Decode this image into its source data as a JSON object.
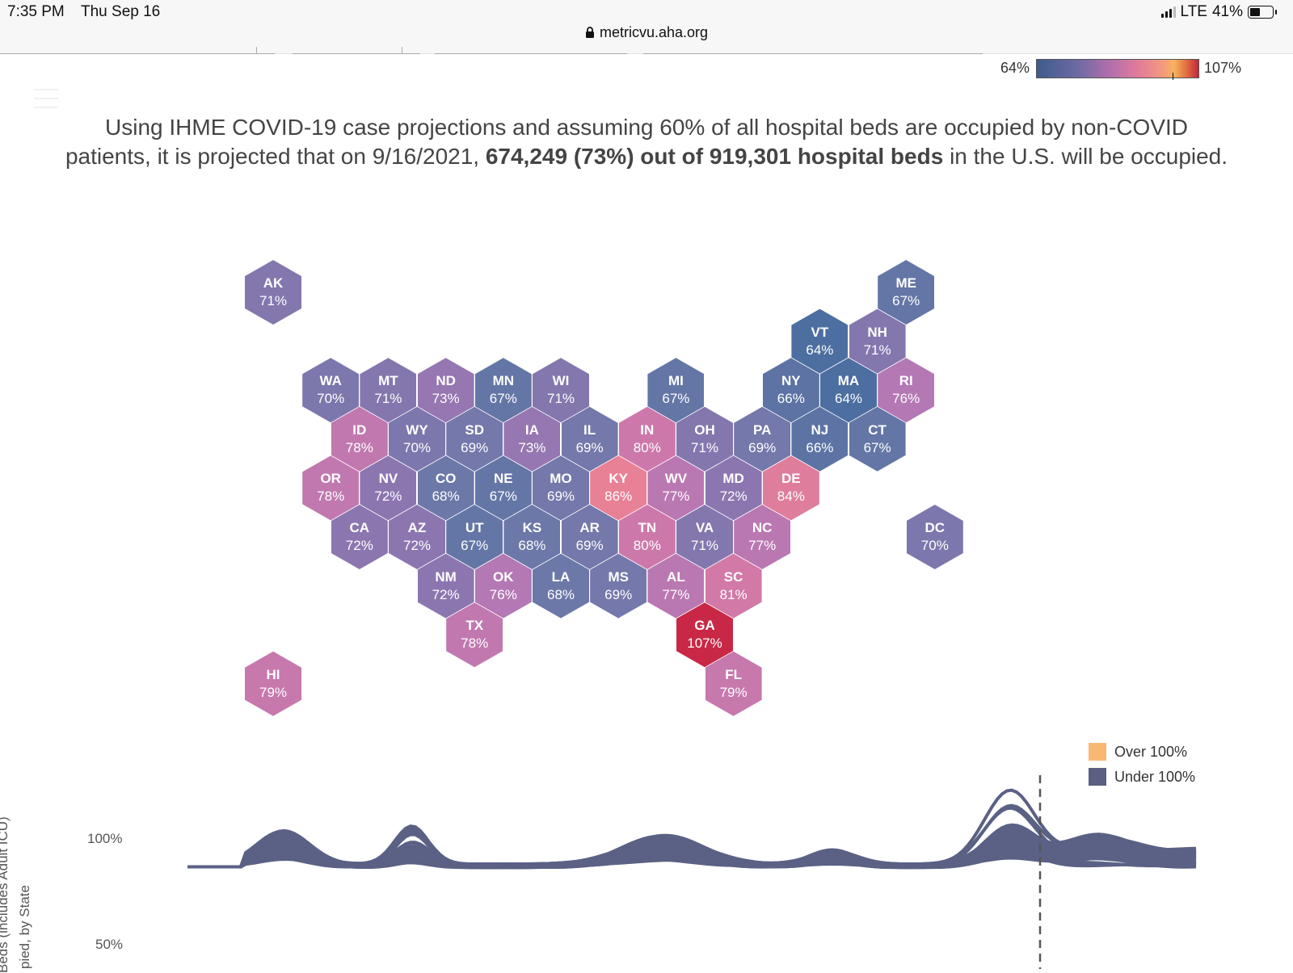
{
  "status_bar": {
    "time": "7:35 PM",
    "date": "Thu Sep 16",
    "network": "LTE",
    "battery": "41%"
  },
  "url": "metricvu.aha.org",
  "color_scale": {
    "min_label": "64%",
    "max_label": "107%"
  },
  "headline": {
    "line1": "Using IHME COVID-19 case projections and assuming 60% of all hospital beds are occupied by non-COVID",
    "line2_pre": "patients, it is projected that on 9/16/2021, ",
    "line2_bold": "674,249 (73%) out of 919,301 hospital beds",
    "line2_post": " in the U.S. will be occupied."
  },
  "states": [
    {
      "abbr": "AK",
      "pct": "71%",
      "value": 71,
      "row": 0,
      "col": 0
    },
    {
      "abbr": "ME",
      "pct": "67%",
      "value": 67,
      "row": 0,
      "col": 11
    },
    {
      "abbr": "VT",
      "pct": "64%",
      "value": 64,
      "row": 1,
      "col": 9.5
    },
    {
      "abbr": "NH",
      "pct": "71%",
      "value": 71,
      "row": 1,
      "col": 10.5
    },
    {
      "abbr": "WA",
      "pct": "70%",
      "value": 70,
      "row": 2,
      "col": 1
    },
    {
      "abbr": "MT",
      "pct": "71%",
      "value": 71,
      "row": 2,
      "col": 2
    },
    {
      "abbr": "ND",
      "pct": "73%",
      "value": 73,
      "row": 2,
      "col": 3
    },
    {
      "abbr": "MN",
      "pct": "67%",
      "value": 67,
      "row": 2,
      "col": 4
    },
    {
      "abbr": "WI",
      "pct": "71%",
      "value": 71,
      "row": 2,
      "col": 5
    },
    {
      "abbr": "MI",
      "pct": "67%",
      "value": 67,
      "row": 2,
      "col": 7
    },
    {
      "abbr": "NY",
      "pct": "66%",
      "value": 66,
      "row": 2,
      "col": 9
    },
    {
      "abbr": "MA",
      "pct": "64%",
      "value": 64,
      "row": 2,
      "col": 10
    },
    {
      "abbr": "RI",
      "pct": "76%",
      "value": 76,
      "row": 2,
      "col": 11
    },
    {
      "abbr": "ID",
      "pct": "78%",
      "value": 78,
      "row": 3,
      "col": 1.5
    },
    {
      "abbr": "WY",
      "pct": "70%",
      "value": 70,
      "row": 3,
      "col": 2.5
    },
    {
      "abbr": "SD",
      "pct": "69%",
      "value": 69,
      "row": 3,
      "col": 3.5
    },
    {
      "abbr": "IA",
      "pct": "73%",
      "value": 73,
      "row": 3,
      "col": 4.5
    },
    {
      "abbr": "IL",
      "pct": "69%",
      "value": 69,
      "row": 3,
      "col": 5.5
    },
    {
      "abbr": "IN",
      "pct": "80%",
      "value": 80,
      "row": 3,
      "col": 6.5
    },
    {
      "abbr": "OH",
      "pct": "71%",
      "value": 71,
      "row": 3,
      "col": 7.5
    },
    {
      "abbr": "PA",
      "pct": "69%",
      "value": 69,
      "row": 3,
      "col": 8.5
    },
    {
      "abbr": "NJ",
      "pct": "66%",
      "value": 66,
      "row": 3,
      "col": 9.5
    },
    {
      "abbr": "CT",
      "pct": "67%",
      "value": 67,
      "row": 3,
      "col": 10.5
    },
    {
      "abbr": "OR",
      "pct": "78%",
      "value": 78,
      "row": 4,
      "col": 1
    },
    {
      "abbr": "NV",
      "pct": "72%",
      "value": 72,
      "row": 4,
      "col": 2
    },
    {
      "abbr": "CO",
      "pct": "68%",
      "value": 68,
      "row": 4,
      "col": 3
    },
    {
      "abbr": "NE",
      "pct": "67%",
      "value": 67,
      "row": 4,
      "col": 4
    },
    {
      "abbr": "MO",
      "pct": "69%",
      "value": 69,
      "row": 4,
      "col": 5
    },
    {
      "abbr": "KY",
      "pct": "86%",
      "value": 86,
      "row": 4,
      "col": 6
    },
    {
      "abbr": "WV",
      "pct": "77%",
      "value": 77,
      "row": 4,
      "col": 7
    },
    {
      "abbr": "MD",
      "pct": "72%",
      "value": 72,
      "row": 4,
      "col": 8
    },
    {
      "abbr": "DE",
      "pct": "84%",
      "value": 84,
      "row": 4,
      "col": 9
    },
    {
      "abbr": "CA",
      "pct": "72%",
      "value": 72,
      "row": 5,
      "col": 1.5
    },
    {
      "abbr": "AZ",
      "pct": "72%",
      "value": 72,
      "row": 5,
      "col": 2.5
    },
    {
      "abbr": "UT",
      "pct": "67%",
      "value": 67,
      "row": 5,
      "col": 3.5
    },
    {
      "abbr": "KS",
      "pct": "68%",
      "value": 68,
      "row": 5,
      "col": 4.5
    },
    {
      "abbr": "AR",
      "pct": "69%",
      "value": 69,
      "row": 5,
      "col": 5.5
    },
    {
      "abbr": "TN",
      "pct": "80%",
      "value": 80,
      "row": 5,
      "col": 6.5
    },
    {
      "abbr": "VA",
      "pct": "71%",
      "value": 71,
      "row": 5,
      "col": 7.5
    },
    {
      "abbr": "NC",
      "pct": "77%",
      "value": 77,
      "row": 5,
      "col": 8.5
    },
    {
      "abbr": "DC",
      "pct": "70%",
      "value": 70,
      "row": 5,
      "col": 11.5
    },
    {
      "abbr": "NM",
      "pct": "72%",
      "value": 72,
      "row": 6,
      "col": 3
    },
    {
      "abbr": "OK",
      "pct": "76%",
      "value": 76,
      "row": 6,
      "col": 4
    },
    {
      "abbr": "LA",
      "pct": "68%",
      "value": 68,
      "row": 6,
      "col": 5
    },
    {
      "abbr": "MS",
      "pct": "69%",
      "value": 69,
      "row": 6,
      "col": 6
    },
    {
      "abbr": "AL",
      "pct": "77%",
      "value": 77,
      "row": 6,
      "col": 7
    },
    {
      "abbr": "SC",
      "pct": "81%",
      "value": 81,
      "row": 6,
      "col": 8
    },
    {
      "abbr": "TX",
      "pct": "78%",
      "value": 78,
      "row": 7,
      "col": 3.5
    },
    {
      "abbr": "GA",
      "pct": "107%",
      "value": 107,
      "row": 7,
      "col": 7.5
    },
    {
      "abbr": "HI",
      "pct": "79%",
      "value": 79,
      "row": 8,
      "col": 0
    },
    {
      "abbr": "FL",
      "pct": "79%",
      "value": 79,
      "row": 8,
      "col": 8
    }
  ],
  "line_chart": {
    "legend": [
      {
        "label": "Over 100%",
        "color": "#f9b872"
      },
      {
        "label": "Under 100%",
        "color": "#5b5f82"
      }
    ],
    "y_axis_title_line1": "Beds (includes Adult ICU)",
    "y_axis_title_line2": "pied, by State",
    "y_ticks": [
      "100%",
      "50%"
    ],
    "colors": {
      "under": "#5b6184",
      "over": "#f9b872",
      "ref_line": "#8a8a8a"
    }
  }
}
